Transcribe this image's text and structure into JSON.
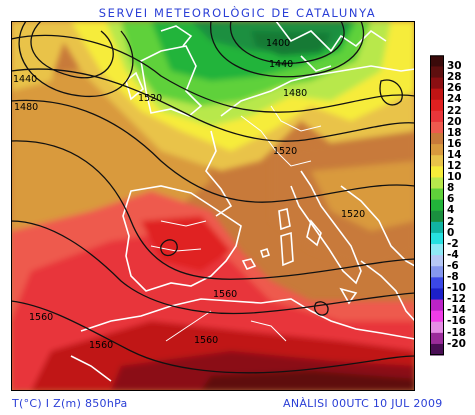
{
  "header": {
    "title": "SERVEI METEOROLÒGIC DE CATALUNYA"
  },
  "footer": {
    "variable_label": "T(°C) I Z(m) 850hPa",
    "analysis_label": "ANÀLISI 00UTC 10 JUL 2009"
  },
  "map": {
    "contour_labels": [
      {
        "id": "c1440a",
        "text": "1440"
      },
      {
        "id": "c1480a",
        "text": "1480"
      },
      {
        "id": "c1400",
        "text": "1400"
      },
      {
        "id": "c1440b",
        "text": "1440"
      },
      {
        "id": "c1520a",
        "text": "1520"
      },
      {
        "id": "c1480b",
        "text": "1480"
      },
      {
        "id": "c1520b",
        "text": "1520"
      },
      {
        "id": "c1520c",
        "text": "1520"
      },
      {
        "id": "c1560a",
        "text": "1560"
      },
      {
        "id": "c1560b",
        "text": "1560"
      },
      {
        "id": "c1560c",
        "text": "1560"
      },
      {
        "id": "c1560d",
        "text": "1560"
      }
    ]
  },
  "legend": {
    "unit": "°C",
    "items": [
      {
        "label": "30",
        "color": "#3a0a0a"
      },
      {
        "label": "28",
        "color": "#5e0f0f"
      },
      {
        "label": "26",
        "color": "#8b0f12"
      },
      {
        "label": "24",
        "color": "#c01414"
      },
      {
        "label": "22",
        "color": "#e02020"
      },
      {
        "label": "20",
        "color": "#e8363a"
      },
      {
        "label": "18",
        "color": "#ee5a4e"
      },
      {
        "label": "16",
        "color": "#c87a3a"
      },
      {
        "label": "14",
        "color": "#d99a3e"
      },
      {
        "label": "12",
        "color": "#e9c34a"
      },
      {
        "label": "10",
        "color": "#f6ec3a"
      },
      {
        "label": "8",
        "color": "#b8e84c"
      },
      {
        "label": "6",
        "color": "#5fd13a"
      },
      {
        "label": "4",
        "color": "#22b43a"
      },
      {
        "label": "2",
        "color": "#1a8f3f"
      },
      {
        "label": "0",
        "color": "#11b3a2"
      },
      {
        "label": "-2",
        "color": "#27e0e0"
      },
      {
        "label": "-4",
        "color": "#8fe9f5"
      },
      {
        "label": "-6",
        "color": "#b6c8f5"
      },
      {
        "label": "-8",
        "color": "#8597ee"
      },
      {
        "label": "-10",
        "color": "#3b48e6"
      },
      {
        "label": "-12",
        "color": "#1c20c8"
      },
      {
        "label": "-14",
        "color": "#bb23c7"
      },
      {
        "label": "-16",
        "color": "#f03de7"
      },
      {
        "label": "-18",
        "color": "#e58ee5"
      },
      {
        "label": "-20",
        "color": "#9a2c9a"
      },
      {
        "label": "",
        "color": "#4a0e55"
      }
    ]
  }
}
